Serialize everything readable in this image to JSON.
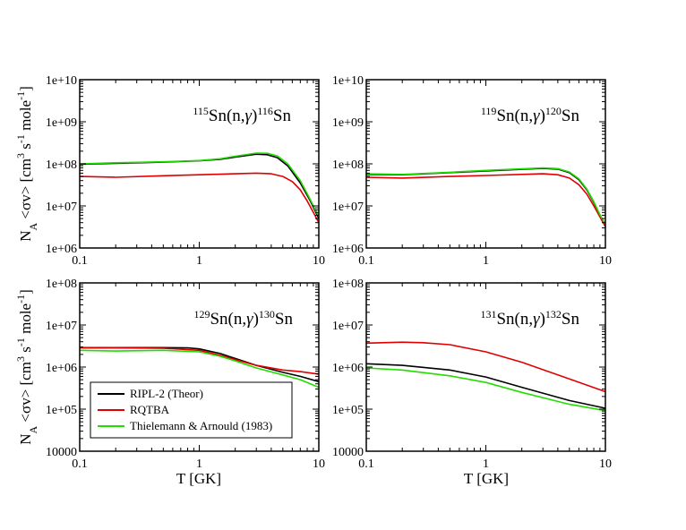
{
  "chart_data": [
    {
      "type": "line",
      "title_parts": [
        "115",
        "Sn(n,",
        "γ",
        ")",
        "116",
        "Sn"
      ],
      "x_ticks": [
        "0.1",
        "1",
        "10"
      ],
      "y_ticks": [
        "1e+06",
        "1e+07",
        "1e+08",
        "1e+09",
        "1e+10"
      ],
      "xlim": [
        0.1,
        10
      ],
      "ylim": [
        1000000,
        10000000000
      ],
      "series": [
        {
          "name": "RIPL-2 (Theor)",
          "color": "#000000",
          "x": [
            0.1,
            0.2,
            0.5,
            1,
            1.5,
            2,
            3,
            3.7,
            4.5,
            5.5,
            7,
            8.5,
            10
          ],
          "y": [
            98000000,
            103000000,
            110000000,
            118000000,
            128000000,
            145000000,
            170000000,
            165000000,
            140000000,
            90000000,
            35000000,
            13000000,
            5000000
          ]
        },
        {
          "name": "RQTBA",
          "color": "#e00000",
          "x": [
            0.1,
            0.2,
            0.5,
            1,
            2,
            3,
            4,
            5,
            6,
            7,
            8,
            9,
            10
          ],
          "y": [
            50000000,
            48000000,
            52000000,
            55000000,
            58000000,
            60000000,
            58000000,
            50000000,
            38000000,
            24000000,
            13000000,
            7000000,
            4000000
          ]
        },
        {
          "name": "Thielemann & Arnould (1983)",
          "color": "#22dd00",
          "x": [
            0.1,
            0.2,
            0.5,
            1,
            1.5,
            2,
            3,
            3.7,
            4.5,
            5.5,
            7,
            8.5,
            10
          ],
          "y": [
            100000000,
            106000000,
            112000000,
            120000000,
            132000000,
            152000000,
            180000000,
            178000000,
            155000000,
            100000000,
            40000000,
            14000000,
            5500000
          ]
        }
      ]
    },
    {
      "type": "line",
      "title_parts": [
        "119",
        "Sn(n,",
        "γ",
        ")",
        "120",
        "Sn"
      ],
      "x_ticks": [
        "0.1",
        "1",
        "10"
      ],
      "y_ticks": [
        "1e+06",
        "1e+07",
        "1e+08",
        "1e+09",
        "1e+10"
      ],
      "xlim": [
        0.1,
        10
      ],
      "ylim": [
        1000000,
        10000000000
      ],
      "series": [
        {
          "name": "RIPL-2 (Theor)",
          "color": "#000000",
          "x": [
            0.1,
            0.2,
            0.5,
            1,
            2,
            3,
            4,
            5,
            6,
            7,
            8,
            9,
            10
          ],
          "y": [
            56000000,
            55000000,
            62000000,
            68000000,
            74000000,
            78000000,
            75000000,
            62000000,
            42000000,
            24000000,
            12000000,
            6000000,
            3500000
          ]
        },
        {
          "name": "RQTBA",
          "color": "#e00000",
          "x": [
            0.1,
            0.2,
            0.5,
            1,
            2,
            3,
            4,
            5,
            6,
            7,
            8,
            9,
            10
          ],
          "y": [
            48000000,
            46000000,
            50000000,
            53000000,
            56000000,
            58000000,
            55000000,
            46000000,
            32000000,
            19000000,
            10000000,
            5500000,
            3200000
          ]
        },
        {
          "name": "Thielemann & Arnould (1983)",
          "color": "#22dd00",
          "x": [
            0.1,
            0.2,
            0.5,
            1,
            2,
            3,
            4,
            5,
            6,
            7,
            8,
            9,
            10
          ],
          "y": [
            58000000,
            56000000,
            63000000,
            70000000,
            76000000,
            80000000,
            77000000,
            64000000,
            44000000,
            25000000,
            12500000,
            6200000,
            3600000
          ]
        }
      ]
    },
    {
      "type": "line",
      "title_parts": [
        "129",
        "Sn(n,",
        "γ",
        ")",
        "130",
        "Sn"
      ],
      "x_ticks": [
        "0.1",
        "1",
        "10"
      ],
      "y_ticks": [
        "10000",
        "1e+05",
        "1e+06",
        "1e+07",
        "1e+08"
      ],
      "xlim": [
        0.1,
        10
      ],
      "ylim": [
        10000,
        100000000
      ],
      "series": [
        {
          "name": "RIPL-2 (Theor)",
          "color": "#000000",
          "x": [
            0.1,
            0.2,
            0.5,
            0.8,
            1,
            1.5,
            2,
            3,
            5,
            7,
            10
          ],
          "y": [
            2900000,
            2900000,
            2900000,
            2850000,
            2700000,
            2100000,
            1600000,
            1100000,
            750000,
            600000,
            450000
          ]
        },
        {
          "name": "RQTBA",
          "color": "#e00000",
          "x": [
            0.1,
            0.2,
            0.5,
            1,
            1.5,
            2,
            3,
            5,
            7,
            10
          ],
          "y": [
            2850000,
            2850000,
            2800000,
            2500000,
            1900000,
            1500000,
            1100000,
            850000,
            780000,
            680000
          ]
        },
        {
          "name": "Thielemann & Arnould (1983)",
          "color": "#22dd00",
          "x": [
            0.1,
            0.2,
            0.5,
            1,
            1.5,
            2,
            3,
            5,
            7,
            10
          ],
          "y": [
            2500000,
            2400000,
            2500000,
            2300000,
            1800000,
            1400000,
            950000,
            650000,
            500000,
            330000
          ]
        }
      ]
    },
    {
      "type": "line",
      "title_parts": [
        "131",
        "Sn(n,",
        "γ",
        ")",
        "132",
        "Sn"
      ],
      "x_ticks": [
        "0.1",
        "1",
        "10"
      ],
      "y_ticks": [
        "10000",
        "1e+05",
        "1e+06",
        "1e+07",
        "1e+08"
      ],
      "xlim": [
        0.1,
        10
      ],
      "ylim": [
        10000,
        100000000
      ],
      "series": [
        {
          "name": "RIPL-2 (Theor)",
          "color": "#000000",
          "x": [
            0.1,
            0.2,
            0.5,
            1,
            2,
            5,
            10
          ],
          "y": [
            1200000,
            1100000,
            850000,
            580000,
            330000,
            160000,
            105000
          ]
        },
        {
          "name": "RQTBA",
          "color": "#e00000",
          "x": [
            0.1,
            0.2,
            0.3,
            0.5,
            1,
            2,
            5,
            10
          ],
          "y": [
            3700000,
            3900000,
            3800000,
            3400000,
            2300000,
            1300000,
            520000,
            260000
          ]
        },
        {
          "name": "Thielemann & Arnould (1983)",
          "color": "#22dd00",
          "x": [
            0.1,
            0.2,
            0.5,
            1,
            2,
            5,
            10
          ],
          "y": [
            950000,
            850000,
            620000,
            430000,
            250000,
            130000,
            92000
          ]
        }
      ]
    }
  ],
  "axes": {
    "xlabel": "T [GK]",
    "ylabel_parts": [
      "N",
      "A",
      " <σv> [cm",
      "3",
      " s",
      "-1",
      " mole",
      "-1",
      "]"
    ]
  },
  "legend": {
    "entries": [
      "RIPL-2 (Theor)",
      "RQTBA",
      "Thielemann & Arnould (1983)"
    ],
    "colors": [
      "#000000",
      "#e00000",
      "#22dd00"
    ]
  }
}
